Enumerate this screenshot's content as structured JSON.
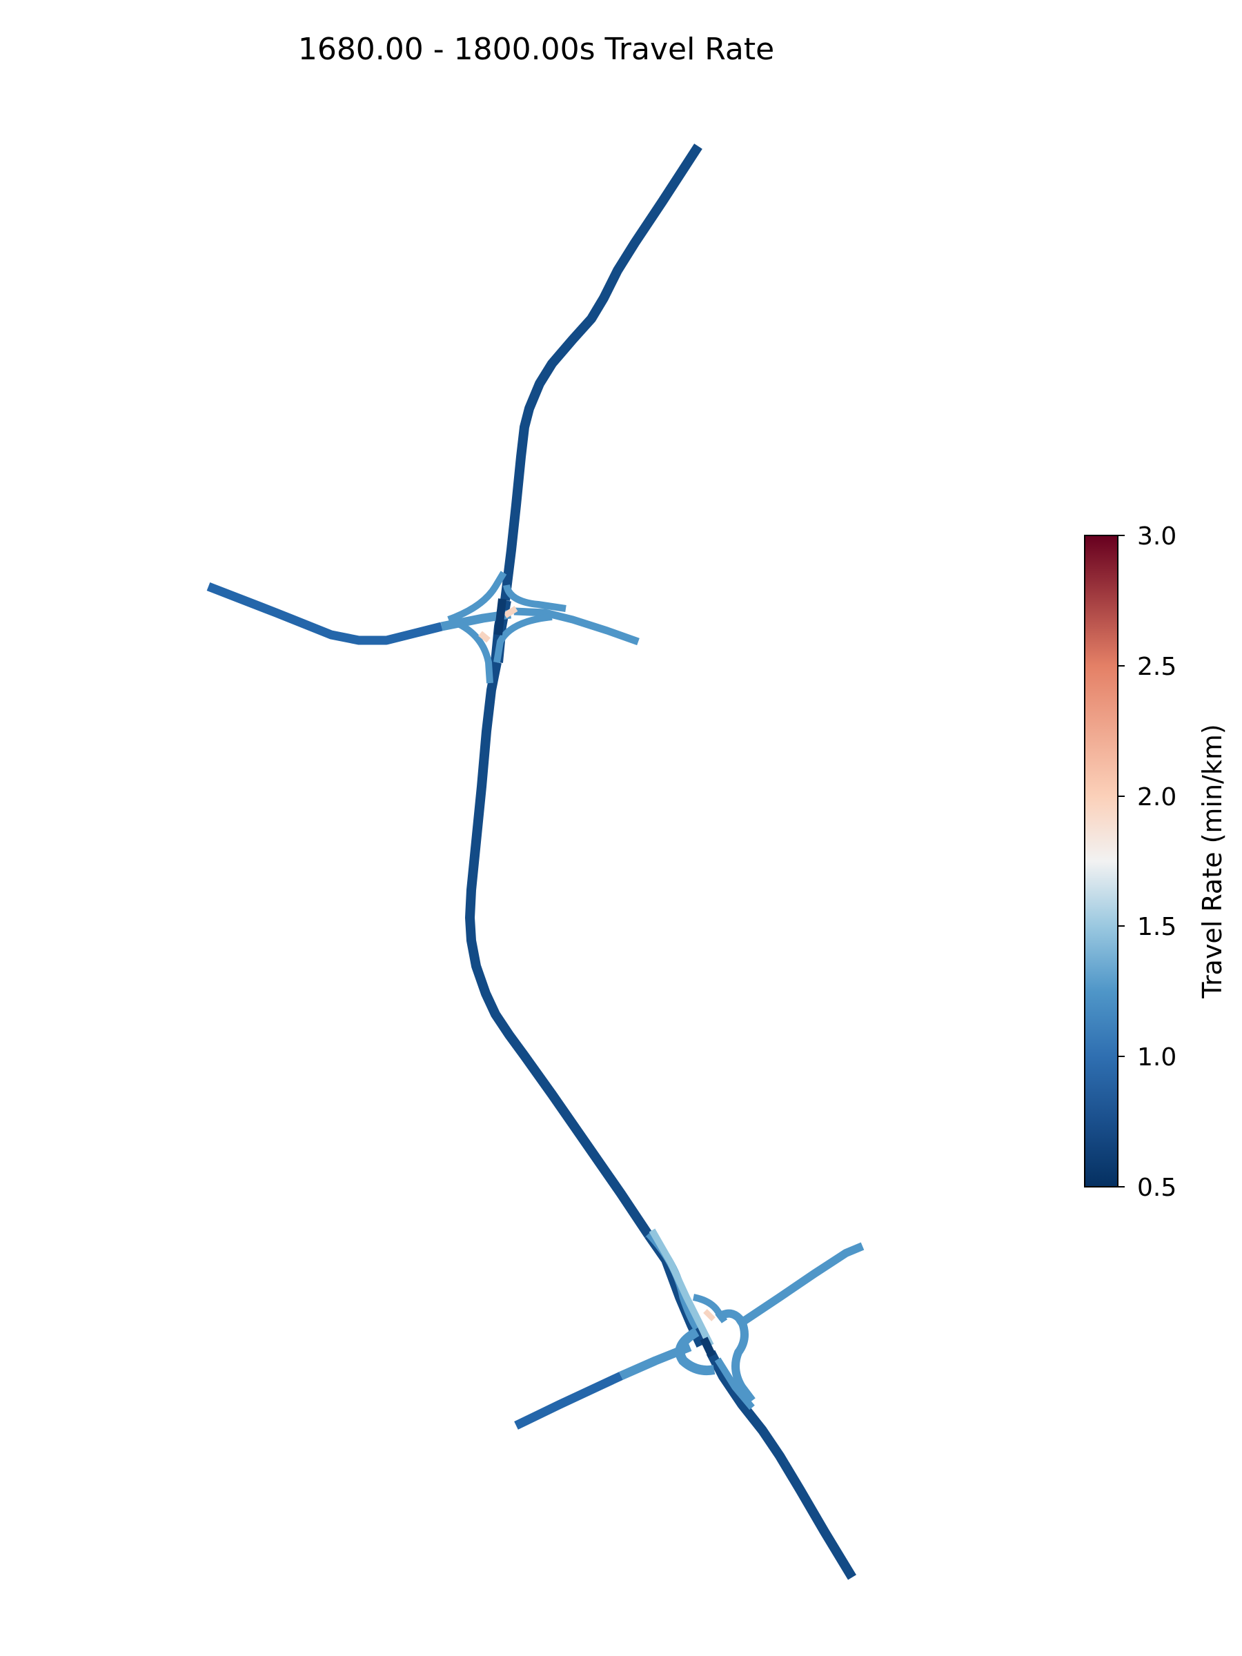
{
  "figure": {
    "title": "1680.00 - 1800.00s Travel Rate"
  },
  "colorbar": {
    "label": "Travel Rate (min/km)",
    "min": 0.5,
    "max": 3.0,
    "ticks": [
      "0.5",
      "1.0",
      "1.5",
      "2.0",
      "2.5",
      "3.0"
    ],
    "colormap": "RdBu_r",
    "colors": {
      "c05": "#053061",
      "c075": "#1a4f8c",
      "c10": "#2f6fb1",
      "c125": "#4f96c8",
      "c15": "#9ac8e0",
      "c175": "#f2f2f2",
      "c20": "#fbd0b9",
      "c25": "#e48066",
      "c30": "#67001f"
    }
  },
  "map": {
    "road_colors": {
      "freeway": "#134b86",
      "west_arterial": "#2466aa",
      "ramps": "#4f96c8",
      "light_ramps": "#92c5de",
      "hotspot": "#f7d5c2",
      "dark_core": "#0b3a6f"
    }
  }
}
